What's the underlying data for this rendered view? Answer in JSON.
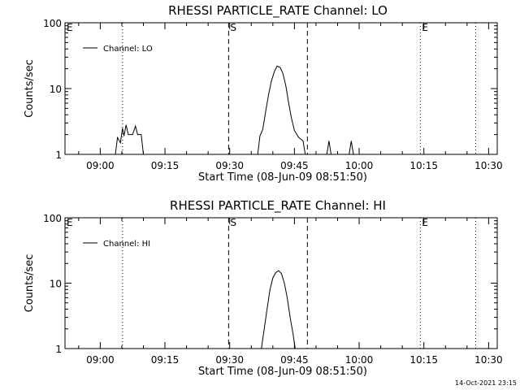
{
  "timestamp": "14-Oct-2021 23:15",
  "chart_data": [
    {
      "type": "line",
      "title": "RHESSI PARTICLE_RATE Channel: LO",
      "xlabel": "Start Time (08-Jun-09 08:51:50)",
      "ylabel": "Counts/sec",
      "yscale": "log",
      "ylim": [
        1,
        100
      ],
      "xlim": [
        "08:51:50",
        "10:32:00"
      ],
      "x_ticks": [
        "09:00",
        "09:15",
        "09:30",
        "09:45",
        "10:00",
        "10:15",
        "10:30"
      ],
      "y_ticks": [
        "1",
        "10",
        "100"
      ],
      "legend": {
        "label": "Channel: LO",
        "position": "top-left"
      },
      "markers": [
        {
          "label": "E",
          "time": "08:51:50",
          "style": "none"
        },
        {
          "label": "",
          "time": "09:05:10",
          "style": "dotted"
        },
        {
          "label": "S",
          "time": "09:29:45",
          "style": "dashed"
        },
        {
          "label": "",
          "time": "09:48:00",
          "style": "dashed"
        },
        {
          "label": "E",
          "time": "10:14:10",
          "style": "dotted"
        },
        {
          "label": "",
          "time": "10:27:00",
          "style": "dotted"
        }
      ],
      "series": [
        {
          "segments": [
            [
              [
                "09:03:30",
                1
              ],
              [
                "09:04:00",
                1.8
              ],
              [
                "09:04:40",
                1.5
              ],
              [
                "09:05:10",
                2.5
              ],
              [
                "09:05:30",
                1.9
              ],
              [
                "09:06:00",
                2.8
              ],
              [
                "09:06:30",
                2
              ],
              [
                "09:07:30",
                2
              ],
              [
                "09:08:10",
                2.7
              ],
              [
                "09:08:40",
                2
              ],
              [
                "09:09:30",
                2
              ],
              [
                "09:10:00",
                1
              ]
            ],
            [
              [
                "09:36:30",
                1
              ],
              [
                "09:37:00",
                1.9
              ],
              [
                "09:37:40",
                2.4
              ],
              [
                "09:38:20",
                4.5
              ],
              [
                "09:39:00",
                8
              ],
              [
                "09:39:40",
                13
              ],
              [
                "09:40:20",
                18
              ],
              [
                "09:41:00",
                22
              ],
              [
                "09:41:40",
                21
              ],
              [
                "09:42:20",
                17
              ],
              [
                "09:43:00",
                11
              ],
              [
                "09:43:40",
                6
              ],
              [
                "09:44:20",
                3.5
              ],
              [
                "09:45:00",
                2.3
              ],
              [
                "09:46:00",
                1.8
              ],
              [
                "09:47:00",
                1.6
              ],
              [
                "09:47:30",
                1
              ]
            ],
            [
              [
                "09:52:30",
                1
              ],
              [
                "09:53:00",
                1.6
              ],
              [
                "09:53:30",
                1
              ]
            ],
            [
              [
                "09:57:40",
                1
              ],
              [
                "09:58:10",
                1.6
              ],
              [
                "09:58:40",
                1
              ]
            ]
          ]
        }
      ]
    },
    {
      "type": "line",
      "title": "RHESSI PARTICLE_RATE Channel: HI",
      "xlabel": "Start Time (08-Jun-09 08:51:50)",
      "ylabel": "Counts/sec",
      "yscale": "log",
      "ylim": [
        1,
        100
      ],
      "xlim": [
        "08:51:50",
        "10:32:00"
      ],
      "x_ticks": [
        "09:00",
        "09:15",
        "09:30",
        "09:45",
        "10:00",
        "10:15",
        "10:30"
      ],
      "y_ticks": [
        "1",
        "10",
        "100"
      ],
      "legend": {
        "label": "Channel: HI",
        "position": "top-left"
      },
      "markers": [
        {
          "label": "E",
          "time": "08:51:50",
          "style": "none"
        },
        {
          "label": "",
          "time": "09:05:10",
          "style": "dotted"
        },
        {
          "label": "S",
          "time": "09:29:45",
          "style": "dashed"
        },
        {
          "label": "",
          "time": "09:48:00",
          "style": "dashed"
        },
        {
          "label": "E",
          "time": "10:14:10",
          "style": "dotted"
        },
        {
          "label": "",
          "time": "10:27:00",
          "style": "dotted"
        }
      ],
      "series": [
        {
          "segments": [
            [
              [
                "09:37:20",
                1
              ],
              [
                "09:38:00",
                2
              ],
              [
                "09:38:40",
                4
              ],
              [
                "09:39:20",
                8
              ],
              [
                "09:40:00",
                12
              ],
              [
                "09:40:40",
                14.5
              ],
              [
                "09:41:20",
                15.5
              ],
              [
                "09:42:00",
                14
              ],
              [
                "09:42:40",
                10
              ],
              [
                "09:43:20",
                6
              ],
              [
                "09:44:00",
                3
              ],
              [
                "09:44:40",
                1.7
              ],
              [
                "09:45:10",
                1
              ]
            ]
          ]
        }
      ]
    }
  ]
}
